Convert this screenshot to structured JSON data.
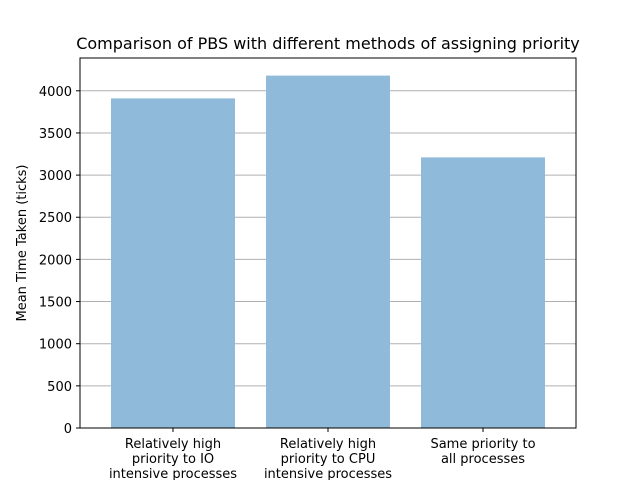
{
  "chart_data": {
    "type": "bar",
    "title": "Comparison of PBS with different methods of assigning priority",
    "xlabel": "",
    "ylabel": "Mean Time Taken (ticks)",
    "categories": [
      [
        "Relatively high",
        "priority to IO",
        "intensive processes"
      ],
      [
        "Relatively high",
        "priority to CPU",
        "intensive processes"
      ],
      [
        "Same priority to",
        "all processes"
      ]
    ],
    "values": [
      3910,
      4180,
      3210
    ],
    "ylim": [
      0,
      4389
    ],
    "yticks": [
      0,
      500,
      1000,
      1500,
      2000,
      2500,
      3000,
      3500,
      4000
    ],
    "grid": "horizontal",
    "bar_color": "#8fbad9"
  }
}
